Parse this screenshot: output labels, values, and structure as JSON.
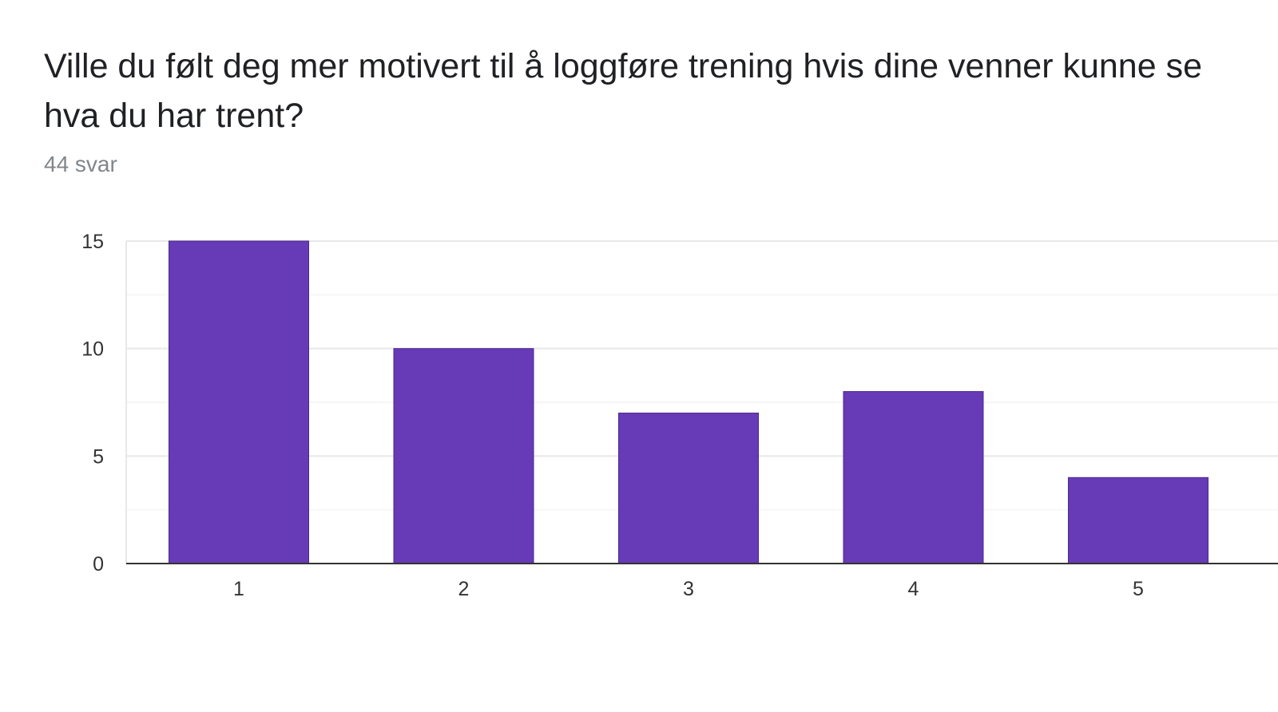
{
  "question": {
    "title": "Ville du følt deg mer motivert til å loggføre trening hvis dine venner kunne se hva du har trent?",
    "response_count": "44 svar"
  },
  "colors": {
    "bar": "#673ab7",
    "bar_border": "#4a2a8c",
    "gridline": "#e8e8e8",
    "minor_gridline": "#f4f4f4",
    "axis": "#333333"
  },
  "chart_data": {
    "type": "bar",
    "categories": [
      "1",
      "2",
      "3",
      "4",
      "5"
    ],
    "values": [
      15,
      10,
      7,
      8,
      4
    ],
    "title": "",
    "xlabel": "",
    "ylabel": "",
    "ylim": [
      0,
      15
    ],
    "yticks": [
      0,
      5,
      10,
      15
    ],
    "grid": true,
    "legend": "none"
  }
}
